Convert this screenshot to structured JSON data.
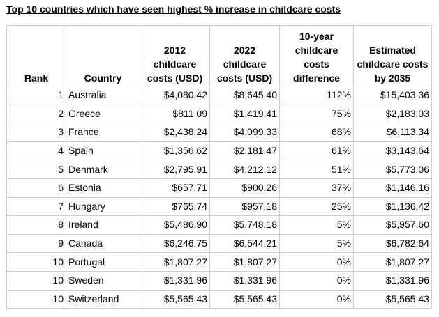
{
  "title": "Top 10 countries which have seen highest % increase in childcare costs",
  "columns": [
    "Rank",
    "Country",
    "2012 childcare costs (USD)",
    "2022 childcare costs (USD)",
    "10-year childcare costs difference",
    "Estimated childcare costs by 2035"
  ],
  "rows": [
    [
      "1",
      "Australia",
      "$4,080.42",
      "$8,645.40",
      "112%",
      "$15,403.36"
    ],
    [
      "2",
      "Greece",
      "$811.09",
      "$1,419.41",
      "75%",
      "$2,183.03"
    ],
    [
      "3",
      "France",
      "$2,438.24",
      "$4,099.33",
      "68%",
      "$6,113.34"
    ],
    [
      "4",
      "Spain",
      "$1,356.62",
      "$2,181.47",
      "61%",
      "$3,143.64"
    ],
    [
      "5",
      "Denmark",
      "$2,795.91",
      "$4,212.12",
      "51%",
      "$5,773.06"
    ],
    [
      "6",
      "Estonia",
      "$657.71",
      "$900.26",
      "37%",
      "$1,146.16"
    ],
    [
      "7",
      "Hungary",
      "$765.74",
      "$957.18",
      "25%",
      "$1,136.42"
    ],
    [
      "8",
      "Ireland",
      "$5,486.90",
      "$5,748.18",
      "5%",
      "$5,957.60"
    ],
    [
      "9",
      "Canada",
      "$6,246.75",
      "$6,544.21",
      "5%",
      "$6,782.64"
    ],
    [
      "10",
      "Portugal",
      "$1,807.27",
      "$1,807.27",
      "0%",
      "$1,807.27"
    ],
    [
      "10",
      "Sweden",
      "$1,331.96",
      "$1,331.96",
      "0%",
      "$1,331.96"
    ],
    [
      "10",
      "Switzerland",
      "$5,565.43",
      "$5,565.43",
      "0%",
      "$5,565.43"
    ]
  ]
}
